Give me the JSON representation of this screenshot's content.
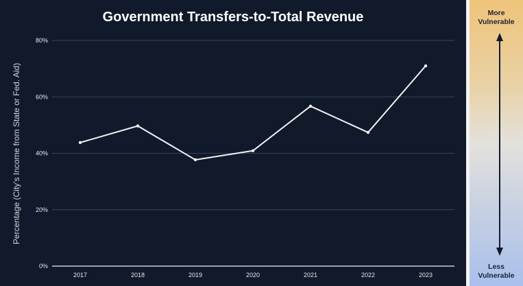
{
  "chart_data": {
    "type": "line",
    "title": "Government Transfers-to-Total Revenue",
    "xlabel": "",
    "ylabel": "Percentage (City's Income from State or Fed. Aid)",
    "categories": [
      "2017",
      "2018",
      "2019",
      "2020",
      "2021",
      "2022",
      "2023"
    ],
    "series": [
      {
        "name": "Government Transfers-to-Total Revenue",
        "values": [
          43.8,
          49.7,
          37.7,
          40.9,
          56.7,
          47.4,
          71.0
        ]
      }
    ],
    "ylim": [
      0,
      80
    ],
    "yticks": [
      0,
      20,
      40,
      60,
      80
    ],
    "ytick_labels": [
      "0%",
      "20%",
      "40%",
      "60%",
      "80%"
    ],
    "grid": true,
    "legend": "none",
    "colors": {
      "background": "#111a2a",
      "line": "#f2f2f2",
      "grid": "#3a4356"
    }
  },
  "vulnerability_scale": {
    "top_label": "More Vulnerable",
    "top_line1": "More",
    "top_line2": "Vulnerable",
    "bottom_line1": "Less",
    "bottom_line2": "Vulnerable",
    "top_color": "#efc37a",
    "bottom_color": "#a9c0ec"
  }
}
